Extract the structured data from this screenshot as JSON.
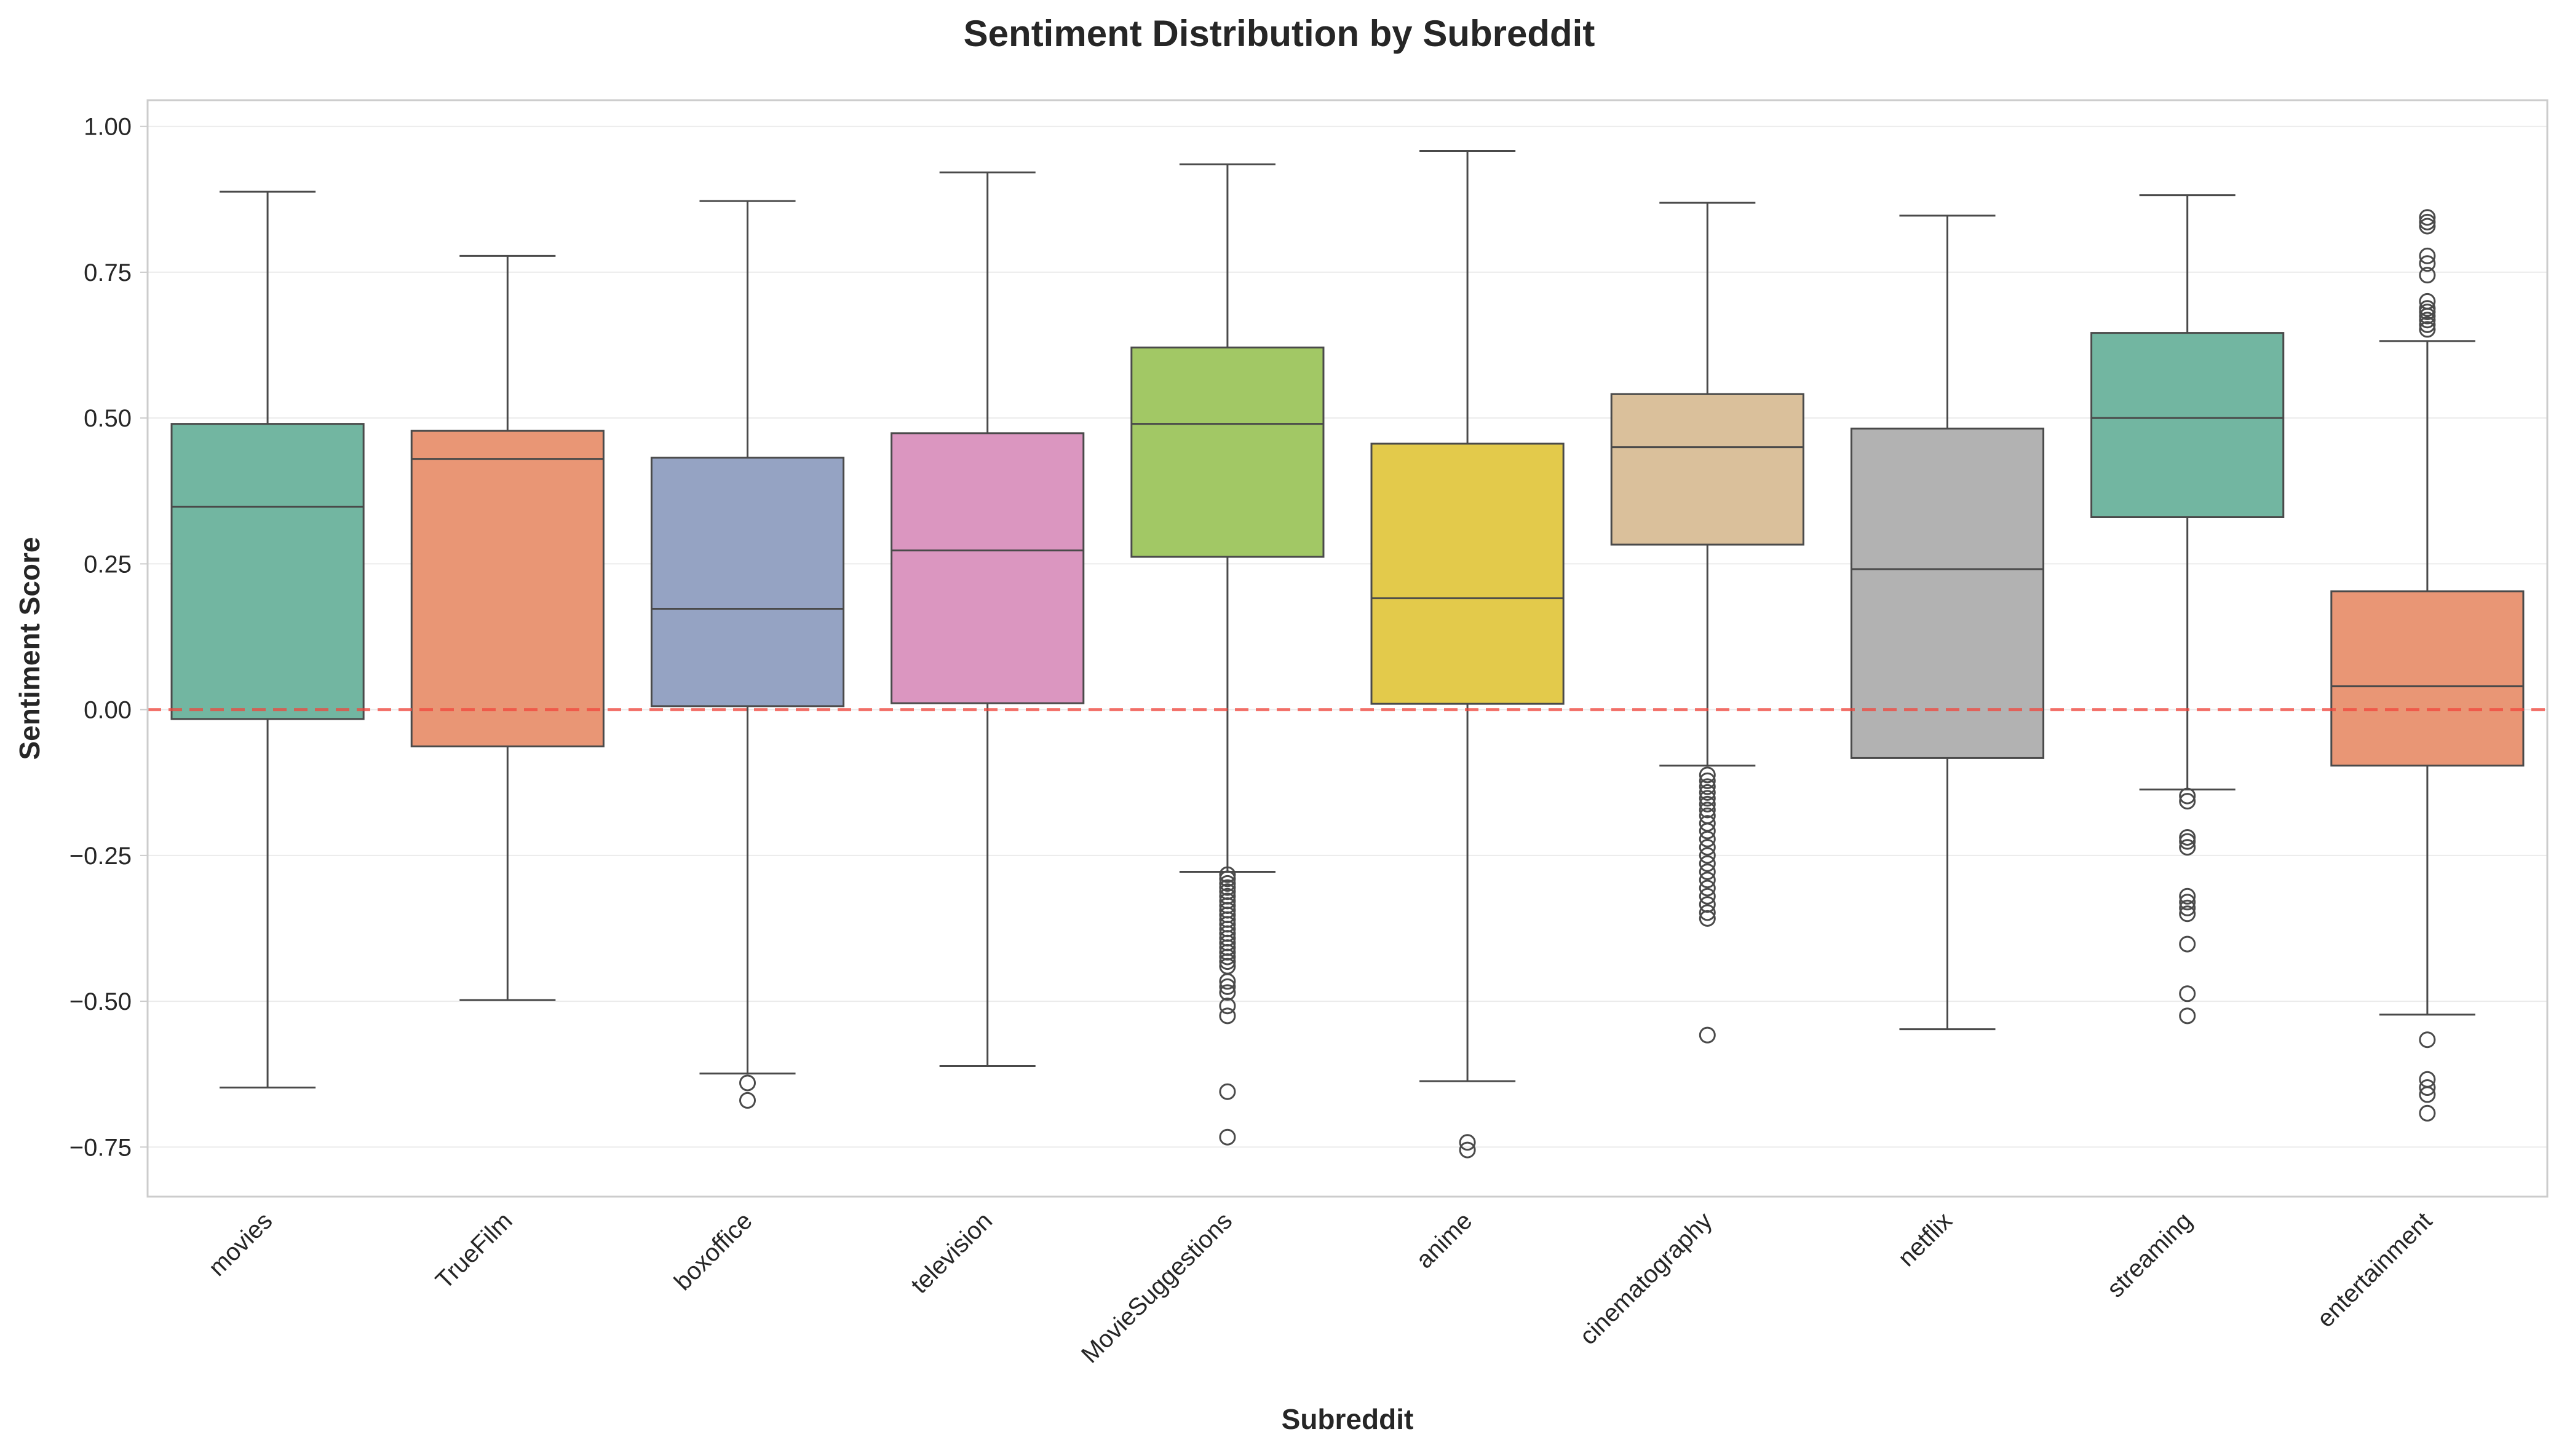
{
  "chart_data": {
    "type": "box",
    "title": "Sentiment Distribution by Subreddit",
    "xlabel": "Subreddit",
    "ylabel": "Sentiment Score",
    "ylim": [
      -0.835,
      1.045
    ],
    "yticks": [
      -0.75,
      -0.5,
      -0.25,
      0.0,
      0.25,
      0.5,
      0.75,
      1.0
    ],
    "ytick_labels": [
      "−0.75",
      "−0.50",
      "−0.25",
      "0.00",
      "0.25",
      "0.50",
      "0.75",
      "1.00"
    ],
    "grid": true,
    "reference_line": {
      "y": 0.0,
      "style": "dashed",
      "color": "#F0463C"
    },
    "colors": {
      "box_edge": "#4a4a4a",
      "grid": "#ebebeb",
      "frame": "#cccccc",
      "text": "#262626"
    },
    "boxes": [
      {
        "category": "movies",
        "color": "#72B6A1",
        "whisker_low": -0.648,
        "q1": -0.016,
        "median": 0.348,
        "q3": 0.49,
        "whisker_high": 0.888,
        "outliers": []
      },
      {
        "category": "TrueFilm",
        "color": "#E99675",
        "whisker_low": -0.498,
        "q1": -0.063,
        "median": 0.43,
        "q3": 0.478,
        "whisker_high": 0.778,
        "outliers": []
      },
      {
        "category": "boxoffice",
        "color": "#95A3C3",
        "whisker_low": -0.624,
        "q1": 0.006,
        "median": 0.173,
        "q3": 0.432,
        "whisker_high": 0.872,
        "outliers": [
          -0.64,
          -0.67
        ]
      },
      {
        "category": "television",
        "color": "#DB96C0",
        "whisker_low": -0.611,
        "q1": 0.011,
        "median": 0.273,
        "q3": 0.474,
        "whisker_high": 0.921,
        "outliers": []
      },
      {
        "category": "MovieSuggestions",
        "color": "#A2C865",
        "whisker_low": -0.278,
        "q1": 0.262,
        "median": 0.49,
        "q3": 0.621,
        "whisker_high": 0.935,
        "outliers": [
          -0.283,
          -0.29,
          -0.298,
          -0.305,
          -0.312,
          -0.32,
          -0.328,
          -0.336,
          -0.344,
          -0.352,
          -0.36,
          -0.368,
          -0.376,
          -0.384,
          -0.392,
          -0.4,
          -0.408,
          -0.416,
          -0.424,
          -0.432,
          -0.44,
          -0.466,
          -0.475,
          -0.485,
          -0.508,
          -0.525,
          -0.655,
          -0.733
        ]
      },
      {
        "category": "anime",
        "color": "#E3CA4B",
        "whisker_low": -0.637,
        "q1": 0.01,
        "median": 0.191,
        "q3": 0.456,
        "whisker_high": 0.958,
        "outliers": [
          -0.742,
          -0.755
        ]
      },
      {
        "category": "cinematography",
        "color": "#DAC09B",
        "whisker_low": -0.096,
        "q1": 0.283,
        "median": 0.45,
        "q3": 0.541,
        "whisker_high": 0.869,
        "outliers": [
          -0.112,
          -0.122,
          -0.132,
          -0.142,
          -0.152,
          -0.162,
          -0.172,
          -0.182,
          -0.195,
          -0.208,
          -0.222,
          -0.236,
          -0.25,
          -0.264,
          -0.278,
          -0.292,
          -0.306,
          -0.32,
          -0.334,
          -0.348,
          -0.358,
          -0.558
        ]
      },
      {
        "category": "netflix",
        "color": "#B2B2B2",
        "whisker_low": -0.548,
        "q1": -0.083,
        "median": 0.241,
        "q3": 0.482,
        "whisker_high": 0.847,
        "outliers": []
      },
      {
        "category": "streaming",
        "color": "#72B6A1",
        "whisker_low": -0.137,
        "q1": 0.33,
        "median": 0.5,
        "q3": 0.646,
        "whisker_high": 0.882,
        "outliers": [
          -0.148,
          -0.157,
          -0.219,
          -0.226,
          -0.236,
          -0.32,
          -0.33,
          -0.34,
          -0.35,
          -0.402,
          -0.487,
          -0.525
        ]
      },
      {
        "category": "entertainment",
        "color": "#E99675",
        "whisker_low": -0.523,
        "q1": -0.096,
        "median": 0.04,
        "q3": 0.203,
        "whisker_high": 0.632,
        "outliers": [
          0.652,
          0.66,
          0.668,
          0.675,
          0.682,
          0.688,
          0.7,
          0.745,
          0.765,
          0.778,
          0.829,
          0.836,
          0.844,
          -0.566,
          -0.634,
          -0.648,
          -0.66,
          -0.692
        ]
      }
    ]
  }
}
